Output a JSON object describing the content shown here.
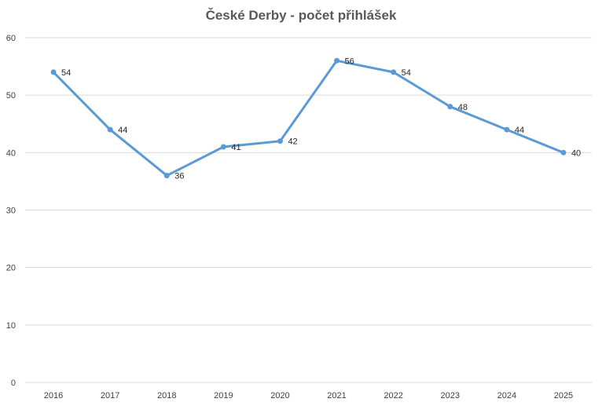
{
  "chart_data": {
    "type": "line",
    "title": "České Derby - počet přihlášek",
    "xlabel": "",
    "ylabel": "",
    "categories": [
      "2016",
      "2017",
      "2018",
      "2019",
      "2020",
      "2021",
      "2022",
      "2023",
      "2024",
      "2025"
    ],
    "series": [
      {
        "values": [
          54,
          44,
          36,
          41,
          42,
          56,
          54,
          48,
          44,
          40
        ],
        "color": "#5b9bd5"
      }
    ],
    "ylim": [
      0,
      60
    ],
    "yticks": [
      0,
      10,
      20,
      30,
      40,
      50,
      60
    ],
    "grid": true,
    "data_labels": true,
    "legend": "none"
  }
}
